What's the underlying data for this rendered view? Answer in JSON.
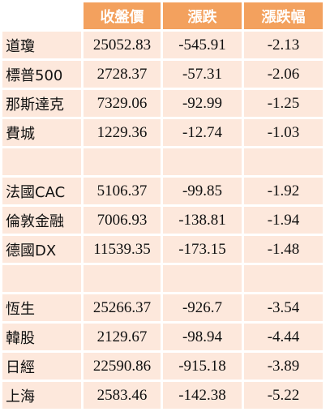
{
  "table": {
    "header": [
      "收盤價",
      "漲跌",
      "漲跌幅"
    ],
    "groups": [
      [
        [
          "道瓊",
          25052.83,
          -545.91,
          -2.13
        ],
        [
          "標普500",
          2728.37,
          -57.31,
          -2.06
        ],
        [
          "那斯達克",
          7329.06,
          -92.99,
          -1.25
        ],
        [
          "費城",
          1229.36,
          -12.74,
          -1.03
        ]
      ],
      [
        [
          "法國CAC",
          5106.37,
          -99.85,
          -1.92
        ],
        [
          "倫敦金融",
          7006.93,
          -138.81,
          -1.94
        ],
        [
          "德國DX",
          11539.35,
          -173.15,
          -1.48
        ]
      ],
      [
        [
          "恆生",
          25266.37,
          -926.7,
          -3.54
        ],
        [
          "韓股",
          2129.67,
          -98.94,
          -4.44
        ],
        [
          "日經",
          22590.86,
          -915.18,
          -3.89
        ],
        [
          "上海",
          2583.46,
          -142.38,
          -5.22
        ]
      ]
    ]
  }
}
